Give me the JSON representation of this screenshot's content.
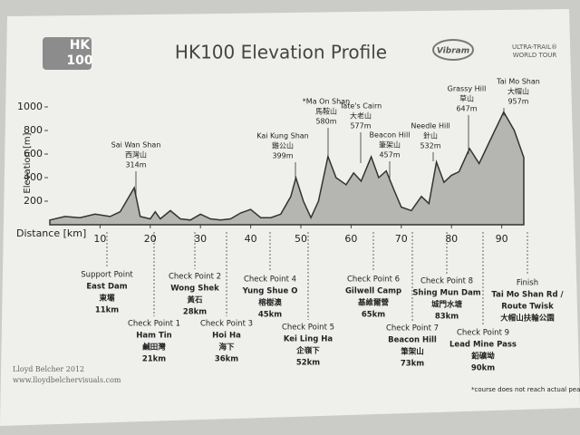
{
  "header": {
    "logo": "HK\n100",
    "logo_top": "HK",
    "logo_bottom": "100",
    "title": "HK100 Elevation Profile",
    "sponsor": "Vibram",
    "tour_top": "ULTRA-TRAIL®",
    "tour_bottom": "WORLD TOUR"
  },
  "chart_data": {
    "type": "area",
    "color": "#9a9a9a",
    "x": [
      0,
      3,
      6,
      9,
      12,
      14,
      16.8,
      18,
      20,
      21,
      22,
      24,
      26,
      28,
      30,
      32,
      34,
      36,
      38,
      40,
      42,
      44,
      46,
      48,
      49,
      50.5,
      52,
      53.5,
      55.4,
      57,
      59,
      60.5,
      62,
      64,
      65.5,
      67,
      68.5,
      70,
      72,
      74,
      75.5,
      77,
      78.5,
      80,
      81.5,
      83.6,
      85.5,
      87.5,
      90.4,
      92.5,
      94.4
    ],
    "values": [
      40,
      70,
      60,
      90,
      70,
      110,
      314,
      70,
      50,
      110,
      50,
      120,
      50,
      40,
      90,
      50,
      40,
      50,
      100,
      130,
      60,
      60,
      90,
      240,
      399,
      200,
      60,
      200,
      580,
      400,
      340,
      440,
      370,
      577,
      400,
      457,
      300,
      150,
      120,
      240,
      180,
      532,
      360,
      420,
      450,
      647,
      520,
      700,
      957,
      800,
      570
    ],
    "xlim": [
      0,
      100
    ],
    "ylim": [
      0,
      1000
    ],
    "xticks": [
      10,
      20,
      30,
      40,
      50,
      60,
      70,
      80,
      90
    ],
    "yticks": [
      200,
      400,
      600,
      800,
      1000
    ],
    "ylabel": "Elevation [m]",
    "xlabel": "Distance [km]",
    "peaks": [
      {
        "lines": [
          "Sai Wan Shan",
          "西灣山",
          "314m"
        ]
      },
      {
        "lines": [
          "Kai Kung Shan",
          "雞公山",
          "399m"
        ]
      },
      {
        "lines": [
          "*Ma On Shan",
          "馬鞍山",
          "580m"
        ]
      },
      {
        "lines": [
          "Tate's Cairn",
          "大老山",
          "577m"
        ]
      },
      {
        "lines": [
          "Beacon Hill",
          "筆架山",
          "457m"
        ]
      },
      {
        "lines": [
          "Needle Hill",
          "針山",
          "532m"
        ]
      },
      {
        "lines": [
          "Grassy Hill",
          "草山",
          "647m"
        ]
      },
      {
        "lines": [
          "Tai Mo Shan",
          "大帽山",
          "957m"
        ]
      }
    ],
    "checkpoints": [
      {
        "lines": [
          "Support Point",
          "East Dam",
          "東壩",
          "11km"
        ]
      },
      {
        "lines": [
          "Check Point 1",
          "Ham Tin",
          "鹹田灣",
          "21km"
        ]
      },
      {
        "lines": [
          "Check Point 2",
          "Wong Shek",
          "黃石",
          "28km"
        ]
      },
      {
        "lines": [
          "Check Point 3",
          "Hoi Ha",
          "海下",
          "36km"
        ]
      },
      {
        "lines": [
          "Check Point 4",
          "Yung Shue O",
          "榕樹澳",
          "45km"
        ]
      },
      {
        "lines": [
          "Check Point 5",
          "Kei Ling Ha",
          "企嶺下",
          "52km"
        ]
      },
      {
        "lines": [
          "Check Point 6",
          "Gilwell Camp",
          "基維爾營",
          "65km"
        ]
      },
      {
        "lines": [
          "Check Point 7",
          "Beacon Hill",
          "筆架山",
          "73km"
        ]
      },
      {
        "lines": [
          "Check Point 8",
          "Shing Mun Dam",
          "城門水塘",
          "83km"
        ]
      },
      {
        "lines": [
          "Check Point 9",
          "Lead Mine Pass",
          "鉛礦坳",
          "90km"
        ]
      },
      {
        "lines": [
          "Finish",
          "Tai Mo Shan Rd /",
          "Route Twisk",
          "大帽山扶輪公園"
        ]
      }
    ]
  },
  "footer": {
    "author": "Lloyd Belcher 2012",
    "website": "www.lloydbelchervisuals.com",
    "note": "*course does not reach actual peak"
  }
}
